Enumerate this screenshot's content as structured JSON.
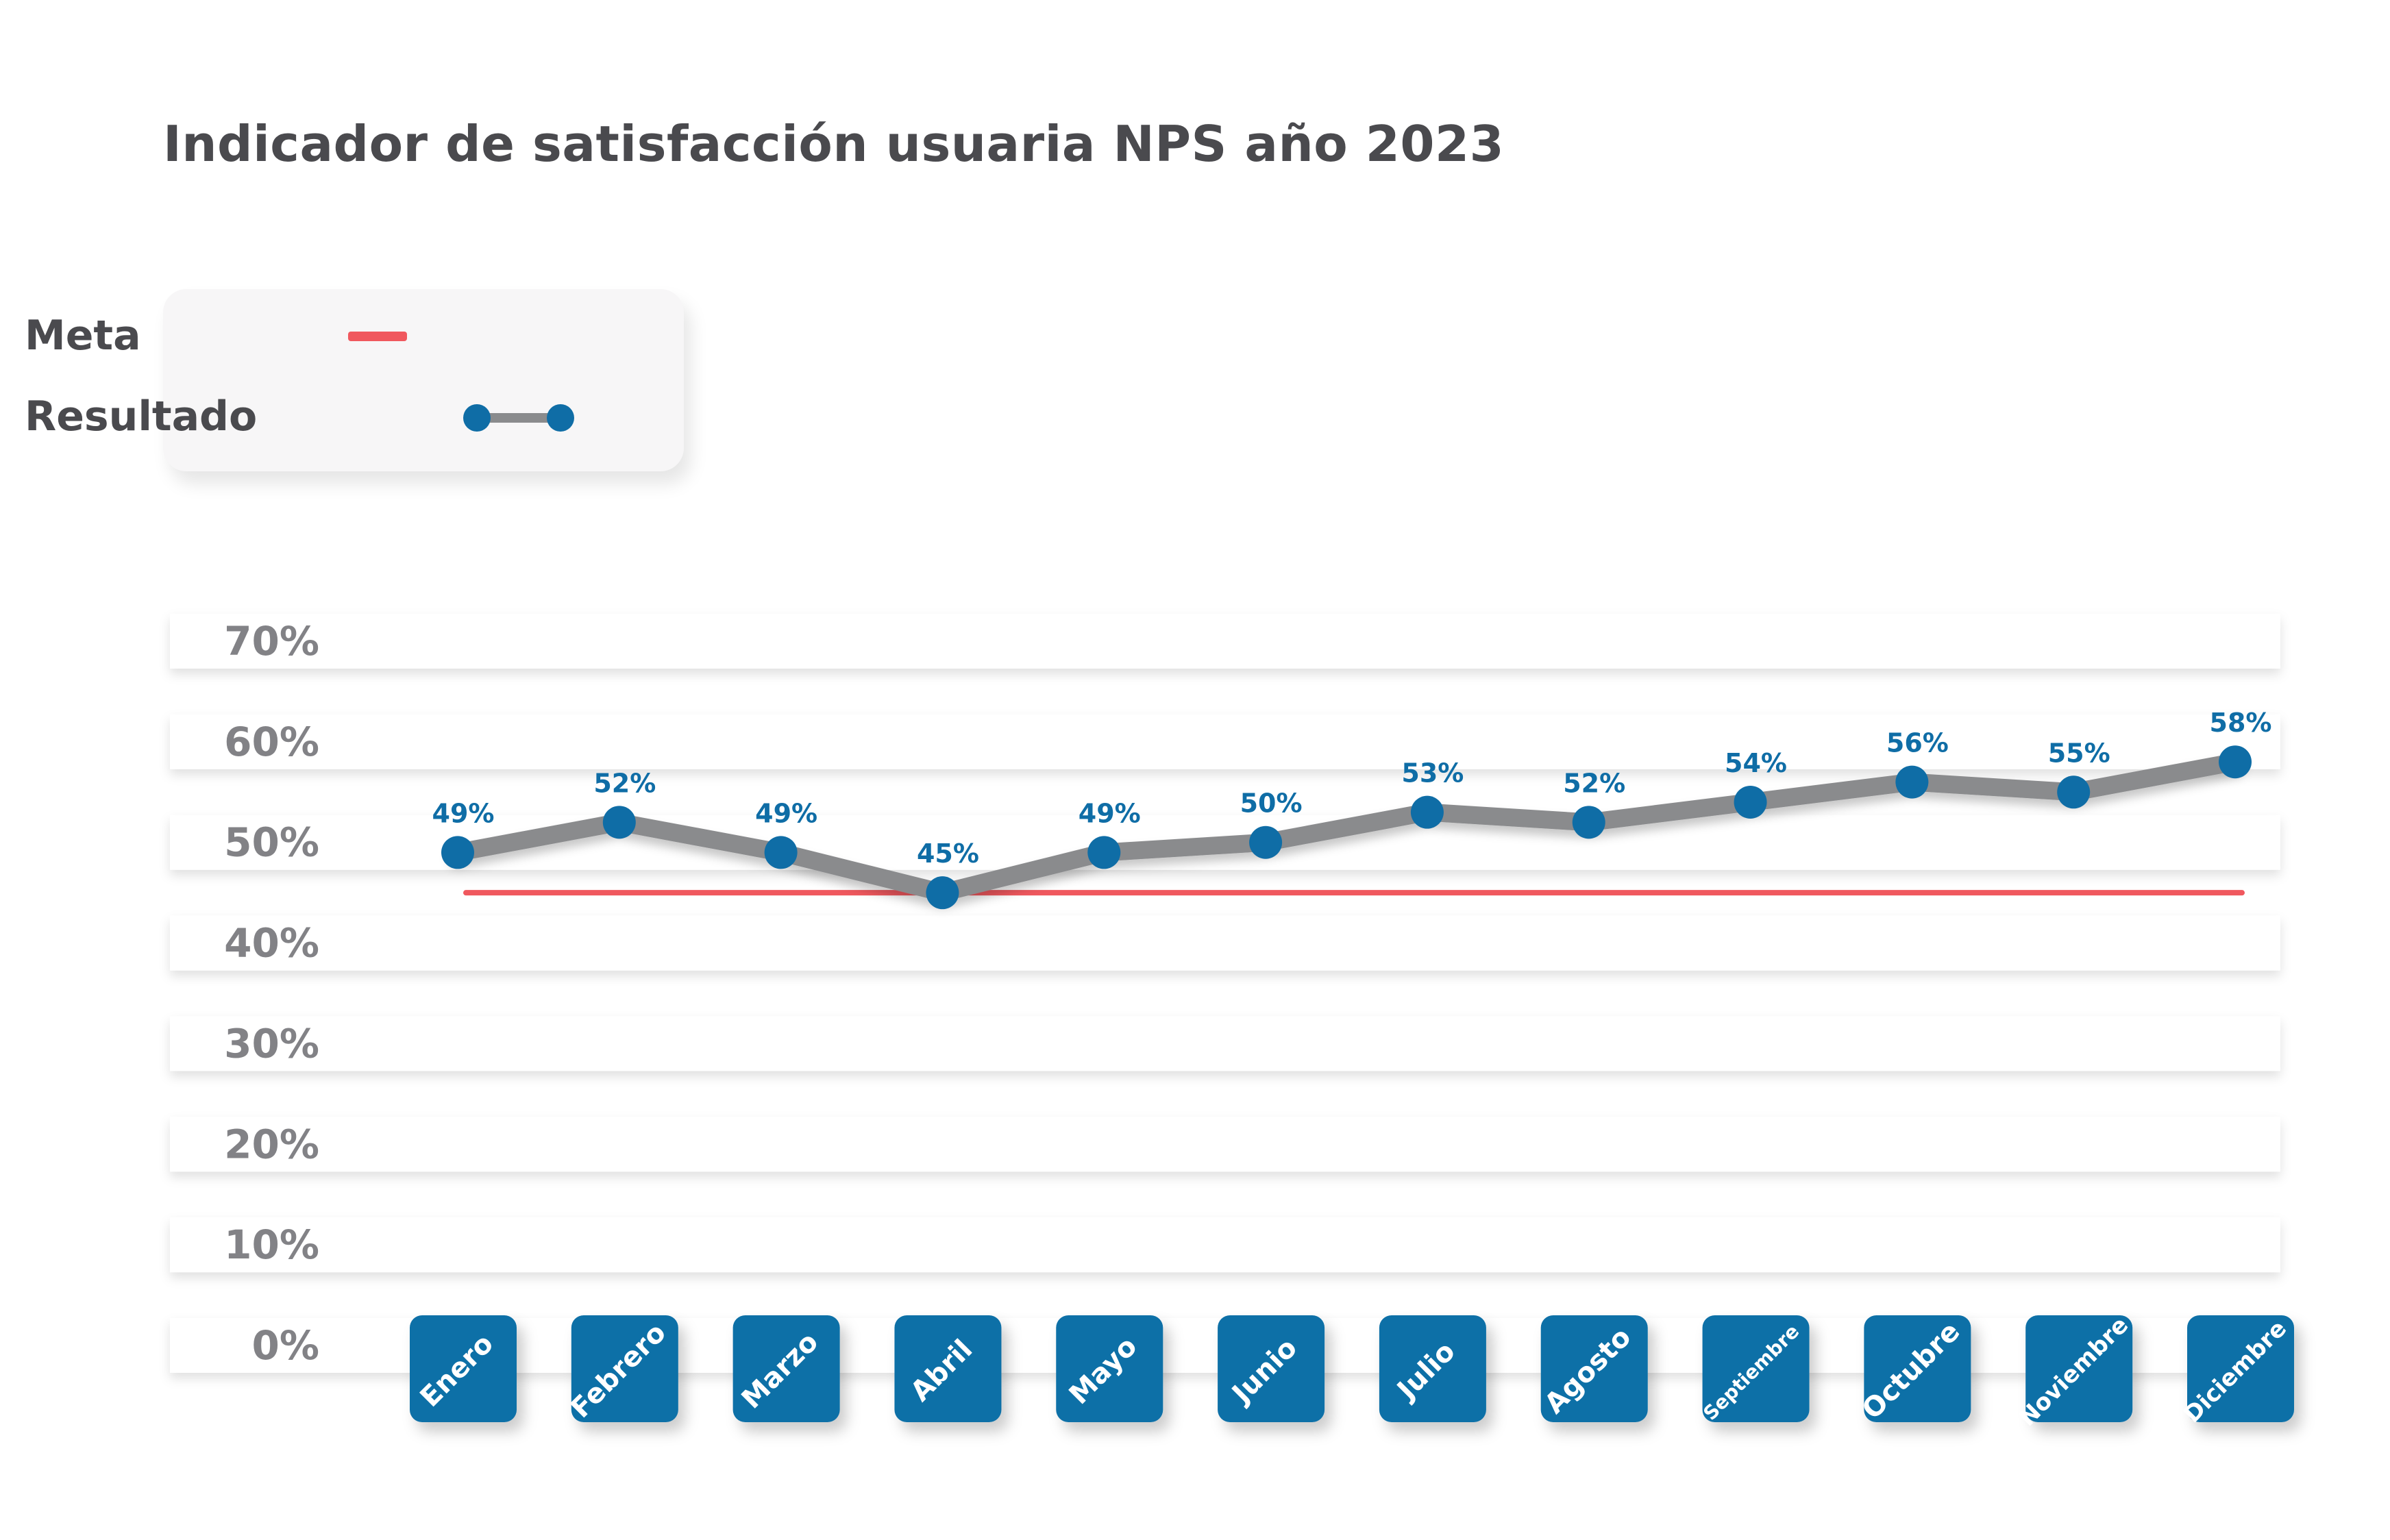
{
  "title": "Indicador de satisfacción usuaria NPS año 2023",
  "legend": {
    "meta_label": "Meta",
    "resultado_label": "Resultado"
  },
  "colors": {
    "meta": "#f0585e",
    "line": "#8a8b8d",
    "point": "#0f6da6",
    "month_tile": "#0c6fa7",
    "axis_text": "#828286",
    "title_text": "#4a4a4e"
  },
  "chart_data": {
    "type": "line",
    "title": "Indicador de satisfacción usuaria NPS año 2023",
    "xlabel": "",
    "ylabel": "",
    "categories": [
      "Enero",
      "Febrero",
      "Marzo",
      "Abril",
      "Mayo",
      "Junio",
      "Julio",
      "Agosto",
      "Septiembre",
      "Octubre",
      "Noviembre",
      "Diciembre"
    ],
    "y_ticks": [
      "70%",
      "60%",
      "50%",
      "40%",
      "30%",
      "20%",
      "10%",
      "0%"
    ],
    "ylim": [
      0,
      70
    ],
    "grid": true,
    "legend_position": "top-left",
    "series": [
      {
        "name": "Resultado",
        "values": [
          49,
          52,
          49,
          45,
          49,
          50,
          53,
          52,
          54,
          56,
          55,
          58
        ],
        "labels": [
          "49%",
          "52%",
          "49%",
          "45%",
          "49%",
          "50%",
          "53%",
          "52%",
          "54%",
          "56%",
          "55%",
          "58%"
        ]
      },
      {
        "name": "Meta",
        "values": [
          45,
          45,
          45,
          45,
          45,
          45,
          45,
          45,
          45,
          45,
          45,
          45
        ]
      }
    ]
  }
}
